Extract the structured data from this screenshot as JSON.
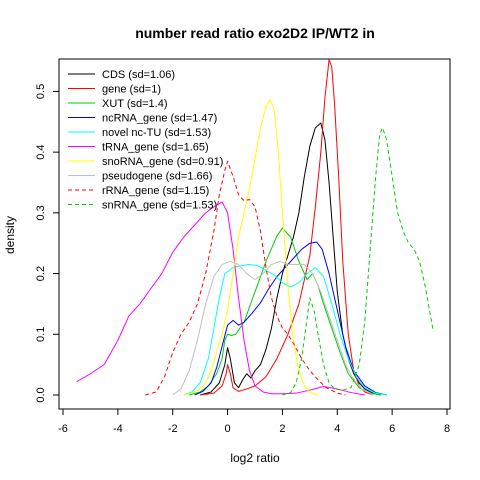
{
  "chart_data": {
    "type": "line",
    "title": "number read ratio exo2D2 IP/WT2 in",
    "xlabel": "log2 ratio",
    "ylabel": "density",
    "xlim": [
      -6,
      8
    ],
    "ylim": [
      0,
      0.56
    ],
    "x_ticks": [
      -6,
      -4,
      -2,
      0,
      2,
      4,
      6,
      8
    ],
    "y_ticks": [
      0.0,
      0.1,
      0.2,
      0.3,
      0.4,
      0.5
    ],
    "x_tick_labels": [
      "-6",
      "-4",
      "-2",
      "0",
      "2",
      "4",
      "6",
      "8"
    ],
    "y_tick_labels": [
      "0.0",
      "0.1",
      "0.2",
      "0.3",
      "0.4",
      "0.5"
    ],
    "grid": false,
    "legend_position": "top-left",
    "series": [
      {
        "name": "CDS (sd=1.06)",
        "color": "#000000",
        "dashed": false,
        "points": [
          [
            -1.0,
            0.0
          ],
          [
            -0.6,
            0.005
          ],
          [
            -0.3,
            0.02
          ],
          [
            -0.1,
            0.05
          ],
          [
            0.0,
            0.078
          ],
          [
            0.1,
            0.06
          ],
          [
            0.25,
            0.02
          ],
          [
            0.4,
            0.012
          ],
          [
            0.55,
            0.025
          ],
          [
            0.7,
            0.035
          ],
          [
            0.85,
            0.028
          ],
          [
            1.0,
            0.04
          ],
          [
            1.2,
            0.05
          ],
          [
            1.4,
            0.075
          ],
          [
            1.6,
            0.11
          ],
          [
            1.8,
            0.16
          ],
          [
            2.0,
            0.2
          ],
          [
            2.2,
            0.23
          ],
          [
            2.4,
            0.26
          ],
          [
            2.6,
            0.3
          ],
          [
            2.8,
            0.36
          ],
          [
            3.0,
            0.41
          ],
          [
            3.2,
            0.44
          ],
          [
            3.4,
            0.448
          ],
          [
            3.55,
            0.42
          ],
          [
            3.7,
            0.35
          ],
          [
            3.85,
            0.26
          ],
          [
            4.0,
            0.17
          ],
          [
            4.2,
            0.1
          ],
          [
            4.4,
            0.06
          ],
          [
            4.6,
            0.035
          ],
          [
            4.8,
            0.02
          ],
          [
            5.0,
            0.01
          ],
          [
            5.3,
            0.003
          ],
          [
            5.6,
            0.0
          ]
        ]
      },
      {
        "name": "gene (sd=1)",
        "color": "#ff0000",
        "dashed": false,
        "points": [
          [
            -1.0,
            0.0
          ],
          [
            -0.5,
            0.003
          ],
          [
            -0.2,
            0.015
          ],
          [
            -0.05,
            0.035
          ],
          [
            0.0,
            0.05
          ],
          [
            0.1,
            0.035
          ],
          [
            0.2,
            0.012
          ],
          [
            0.4,
            0.006
          ],
          [
            0.7,
            0.01
          ],
          [
            1.0,
            0.015
          ],
          [
            1.4,
            0.03
          ],
          [
            1.8,
            0.06
          ],
          [
            2.2,
            0.1
          ],
          [
            2.6,
            0.15
          ],
          [
            3.0,
            0.23
          ],
          [
            3.2,
            0.31
          ],
          [
            3.4,
            0.4
          ],
          [
            3.55,
            0.49
          ],
          [
            3.7,
            0.552
          ],
          [
            3.8,
            0.54
          ],
          [
            3.9,
            0.48
          ],
          [
            4.05,
            0.36
          ],
          [
            4.2,
            0.22
          ],
          [
            4.4,
            0.1
          ],
          [
            4.6,
            0.04
          ],
          [
            4.8,
            0.015
          ],
          [
            5.0,
            0.005
          ],
          [
            5.3,
            0.0
          ]
        ]
      },
      {
        "name": "XUT (sd=1.4)",
        "color": "#00cd00",
        "dashed": false,
        "points": [
          [
            -1.4,
            0.0
          ],
          [
            -1.0,
            0.005
          ],
          [
            -0.7,
            0.015
          ],
          [
            -0.4,
            0.035
          ],
          [
            -0.2,
            0.06
          ],
          [
            -0.1,
            0.09
          ],
          [
            0.0,
            0.1
          ],
          [
            0.15,
            0.098
          ],
          [
            0.3,
            0.1
          ],
          [
            0.6,
            0.12
          ],
          [
            1.0,
            0.17
          ],
          [
            1.4,
            0.22
          ],
          [
            1.8,
            0.262
          ],
          [
            2.0,
            0.275
          ],
          [
            2.3,
            0.26
          ],
          [
            2.6,
            0.22
          ],
          [
            2.9,
            0.19
          ],
          [
            3.1,
            0.2
          ],
          [
            3.3,
            0.18
          ],
          [
            3.5,
            0.15
          ],
          [
            3.8,
            0.11
          ],
          [
            4.1,
            0.07
          ],
          [
            4.4,
            0.035
          ],
          [
            4.8,
            0.012
          ],
          [
            5.2,
            0.003
          ],
          [
            5.6,
            0.0
          ]
        ]
      },
      {
        "name": "ncRNA_gene (sd=1.47)",
        "color": "#0000ff",
        "dashed": false,
        "points": [
          [
            -1.2,
            0.0
          ],
          [
            -0.9,
            0.006
          ],
          [
            -0.6,
            0.02
          ],
          [
            -0.4,
            0.045
          ],
          [
            -0.2,
            0.08
          ],
          [
            0.0,
            0.115
          ],
          [
            0.2,
            0.123
          ],
          [
            0.4,
            0.115
          ],
          [
            0.6,
            0.12
          ],
          [
            0.9,
            0.135
          ],
          [
            1.2,
            0.152
          ],
          [
            1.5,
            0.175
          ],
          [
            1.8,
            0.195
          ],
          [
            2.1,
            0.21
          ],
          [
            2.4,
            0.225
          ],
          [
            2.7,
            0.24
          ],
          [
            3.0,
            0.25
          ],
          [
            3.25,
            0.252
          ],
          [
            3.45,
            0.24
          ],
          [
            3.7,
            0.2
          ],
          [
            4.0,
            0.14
          ],
          [
            4.3,
            0.08
          ],
          [
            4.6,
            0.04
          ],
          [
            5.0,
            0.015
          ],
          [
            5.4,
            0.004
          ],
          [
            5.8,
            0.0
          ]
        ]
      },
      {
        "name": "novel nc-TU (sd=1.53)",
        "color": "#00ffff",
        "dashed": false,
        "points": [
          [
            -1.6,
            0.0
          ],
          [
            -1.3,
            0.005
          ],
          [
            -1.0,
            0.02
          ],
          [
            -0.7,
            0.06
          ],
          [
            -0.5,
            0.11
          ],
          [
            -0.3,
            0.16
          ],
          [
            -0.1,
            0.2
          ],
          [
            0.2,
            0.21
          ],
          [
            0.5,
            0.213
          ],
          [
            0.8,
            0.215
          ],
          [
            1.1,
            0.213
          ],
          [
            1.4,
            0.205
          ],
          [
            1.7,
            0.198
          ],
          [
            2.0,
            0.185
          ],
          [
            2.3,
            0.178
          ],
          [
            2.6,
            0.185
          ],
          [
            2.9,
            0.2
          ],
          [
            3.2,
            0.21
          ],
          [
            3.5,
            0.195
          ],
          [
            3.8,
            0.15
          ],
          [
            4.1,
            0.1
          ],
          [
            4.4,
            0.06
          ],
          [
            4.7,
            0.03
          ],
          [
            5.0,
            0.012
          ],
          [
            5.4,
            0.003
          ],
          [
            5.8,
            0.0
          ]
        ]
      },
      {
        "name": "tRNA_gene (sd=1.65)",
        "color": "#ff00ff",
        "dashed": false,
        "points": [
          [
            -5.5,
            0.022
          ],
          [
            -5.0,
            0.035
          ],
          [
            -4.5,
            0.05
          ],
          [
            -4.0,
            0.09
          ],
          [
            -3.6,
            0.13
          ],
          [
            -3.2,
            0.15
          ],
          [
            -2.8,
            0.175
          ],
          [
            -2.4,
            0.2
          ],
          [
            -2.0,
            0.235
          ],
          [
            -1.6,
            0.26
          ],
          [
            -1.2,
            0.28
          ],
          [
            -0.8,
            0.3
          ],
          [
            -0.5,
            0.31
          ],
          [
            -0.2,
            0.318
          ],
          [
            0.0,
            0.3
          ],
          [
            0.2,
            0.24
          ],
          [
            0.4,
            0.16
          ],
          [
            0.6,
            0.09
          ],
          [
            0.8,
            0.04
          ],
          [
            1.0,
            0.015
          ],
          [
            1.3,
            0.005
          ],
          [
            1.6,
            0.002
          ],
          [
            2.0,
            0.002
          ],
          [
            2.5,
            0.003
          ],
          [
            3.0,
            0.008
          ],
          [
            3.5,
            0.014
          ],
          [
            4.0,
            0.01
          ],
          [
            4.5,
            0.004
          ],
          [
            5.0,
            0.0
          ]
        ]
      },
      {
        "name": "snoRNA_gene (sd=0.91)",
        "color": "#ffff00",
        "dashed": false,
        "points": [
          [
            -1.6,
            0.0
          ],
          [
            -1.3,
            0.003
          ],
          [
            -1.0,
            0.01
          ],
          [
            -0.8,
            0.02
          ],
          [
            -0.6,
            0.04
          ],
          [
            -0.4,
            0.07
          ],
          [
            -0.2,
            0.1
          ],
          [
            0.0,
            0.14
          ],
          [
            0.2,
            0.2
          ],
          [
            0.4,
            0.26
          ],
          [
            0.6,
            0.3
          ],
          [
            0.8,
            0.34
          ],
          [
            1.0,
            0.39
          ],
          [
            1.2,
            0.44
          ],
          [
            1.4,
            0.475
          ],
          [
            1.55,
            0.487
          ],
          [
            1.7,
            0.47
          ],
          [
            1.85,
            0.4
          ],
          [
            2.0,
            0.3
          ],
          [
            2.2,
            0.18
          ],
          [
            2.4,
            0.09
          ],
          [
            2.6,
            0.04
          ],
          [
            2.8,
            0.015
          ],
          [
            3.0,
            0.004
          ],
          [
            3.3,
            0.0
          ]
        ]
      },
      {
        "name": "pseudogene (sd=1.66)",
        "color": "#c0c0c0",
        "dashed": false,
        "points": [
          [
            -2.0,
            0.0
          ],
          [
            -1.7,
            0.01
          ],
          [
            -1.4,
            0.04
          ],
          [
            -1.1,
            0.09
          ],
          [
            -0.8,
            0.15
          ],
          [
            -0.5,
            0.195
          ],
          [
            -0.2,
            0.215
          ],
          [
            0.1,
            0.22
          ],
          [
            0.4,
            0.215
          ],
          [
            0.7,
            0.2
          ],
          [
            1.0,
            0.19
          ],
          [
            1.3,
            0.2
          ],
          [
            1.6,
            0.215
          ],
          [
            1.9,
            0.22
          ],
          [
            2.2,
            0.215
          ],
          [
            2.5,
            0.215
          ],
          [
            2.8,
            0.215
          ],
          [
            3.1,
            0.2
          ],
          [
            3.4,
            0.17
          ],
          [
            3.7,
            0.13
          ],
          [
            4.0,
            0.09
          ],
          [
            4.3,
            0.05
          ],
          [
            4.6,
            0.025
          ],
          [
            4.9,
            0.01
          ],
          [
            5.3,
            0.0
          ]
        ]
      },
      {
        "name": "rRNA_gene (sd=1.15)",
        "color": "#ff0000",
        "dashed": true,
        "points": [
          [
            -3.0,
            0.0
          ],
          [
            -2.6,
            0.005
          ],
          [
            -2.3,
            0.03
          ],
          [
            -2.0,
            0.07
          ],
          [
            -1.7,
            0.1
          ],
          [
            -1.4,
            0.12
          ],
          [
            -1.1,
            0.15
          ],
          [
            -0.8,
            0.2
          ],
          [
            -0.5,
            0.27
          ],
          [
            -0.3,
            0.33
          ],
          [
            -0.1,
            0.37
          ],
          [
            0.0,
            0.385
          ],
          [
            0.2,
            0.36
          ],
          [
            0.4,
            0.33
          ],
          [
            0.6,
            0.32
          ],
          [
            0.8,
            0.322
          ],
          [
            1.0,
            0.31
          ],
          [
            1.2,
            0.27
          ],
          [
            1.4,
            0.21
          ],
          [
            1.6,
            0.16
          ],
          [
            1.8,
            0.13
          ],
          [
            2.0,
            0.11
          ],
          [
            2.2,
            0.1
          ],
          [
            2.4,
            0.085
          ],
          [
            2.7,
            0.06
          ],
          [
            3.0,
            0.04
          ],
          [
            3.3,
            0.025
          ],
          [
            3.6,
            0.012
          ],
          [
            4.0,
            0.003
          ],
          [
            4.3,
            0.0
          ]
        ]
      },
      {
        "name": "snRNA_gene (sd=1.53)",
        "color": "#00cd00",
        "dashed": true,
        "points": [
          [
            2.0,
            0.0
          ],
          [
            2.3,
            0.004
          ],
          [
            2.5,
            0.02
          ],
          [
            2.7,
            0.06
          ],
          [
            2.85,
            0.11
          ],
          [
            3.0,
            0.16
          ],
          [
            3.15,
            0.14
          ],
          [
            3.3,
            0.1
          ],
          [
            3.5,
            0.05
          ],
          [
            3.7,
            0.02
          ],
          [
            3.9,
            0.01
          ],
          [
            4.2,
            0.008
          ],
          [
            4.5,
            0.012
          ],
          [
            4.8,
            0.05
          ],
          [
            5.0,
            0.12
          ],
          [
            5.2,
            0.24
          ],
          [
            5.4,
            0.36
          ],
          [
            5.55,
            0.43
          ],
          [
            5.65,
            0.44
          ],
          [
            5.8,
            0.42
          ],
          [
            6.0,
            0.36
          ],
          [
            6.2,
            0.3
          ],
          [
            6.4,
            0.27
          ],
          [
            6.6,
            0.25
          ],
          [
            6.8,
            0.24
          ],
          [
            7.0,
            0.22
          ],
          [
            7.2,
            0.18
          ],
          [
            7.4,
            0.13
          ],
          [
            7.5,
            0.105
          ]
        ]
      }
    ]
  }
}
